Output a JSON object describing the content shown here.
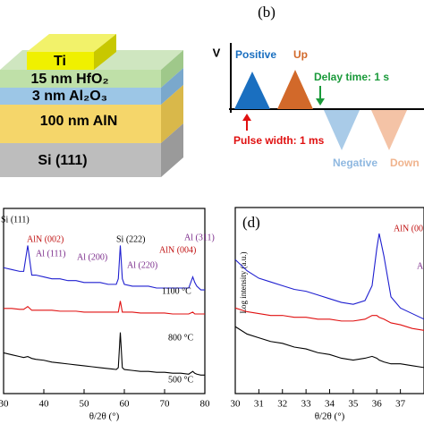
{
  "panel_a": {
    "layers": [
      "Ti",
      "15 nm HfO₂",
      "3 nm Al₂O₃",
      "100 nm AlN",
      "Si (111)"
    ]
  },
  "panel_b": {
    "label": "(b)",
    "axis_label": "V",
    "pulses": [
      "Positive",
      "Up",
      "Negative",
      "Down"
    ],
    "delay": "Delay time: 1 s",
    "width": "Pulse width: 1 ms"
  },
  "chart_data": [
    {
      "type": "line",
      "xlabel": "θ/2θ (°)",
      "xlim": [
        30,
        80
      ],
      "xticks": [
        30,
        40,
        50,
        60,
        70,
        80
      ],
      "ylim": [
        0,
        100
      ],
      "annotations": [
        "Si (111)",
        "AlN (002)",
        "Al (111)",
        "Al (200)",
        "Si (222)",
        "Al (220)",
        "AlN (004)",
        "Al (311)"
      ],
      "x": [
        30,
        32,
        34,
        35,
        36,
        36.5,
        37,
        38,
        40,
        42,
        44,
        46,
        48,
        50,
        52,
        54,
        56,
        58,
        58.5,
        59,
        59.5,
        60,
        62,
        64,
        66,
        68,
        70,
        72,
        74,
        76,
        77,
        77.5,
        78,
        79,
        80
      ],
      "series": [
        {
          "name": "1100 °C",
          "color": "#1f1fd0",
          "values": [
            68,
            67,
            66,
            66,
            80,
            72,
            64,
            64,
            63,
            62,
            62,
            61,
            61,
            60,
            60,
            60,
            59,
            59,
            62,
            80,
            62,
            59,
            58,
            58,
            58,
            57,
            57,
            57,
            57,
            57,
            63,
            60,
            58,
            56,
            56
          ]
        },
        {
          "name": "800 °C",
          "color": "#e01010",
          "values": [
            46,
            46,
            45.5,
            45.5,
            47,
            46,
            45,
            45,
            45,
            45,
            44.5,
            44.5,
            44.5,
            44,
            44,
            44,
            44,
            44,
            44,
            50,
            44,
            44,
            44,
            43.5,
            43.5,
            43.5,
            43.5,
            43,
            43,
            43,
            44,
            43,
            43,
            43,
            43
          ]
        },
        {
          "name": "500 °C",
          "color": "#000000",
          "values": [
            22,
            21,
            20,
            19.5,
            20,
            19.5,
            19,
            18.5,
            18,
            17,
            16.5,
            16,
            15.5,
            15,
            14.5,
            14,
            13.5,
            13,
            14,
            33,
            14,
            13,
            12.5,
            12,
            12,
            11.5,
            11.5,
            11,
            11,
            10.5,
            12,
            11,
            10.5,
            10,
            10
          ]
        }
      ]
    },
    {
      "type": "line",
      "panel_label": "(d)",
      "xlabel": "θ/2θ (°)",
      "ylabel": "Log intensity (a.u.)",
      "xlim": [
        30,
        38
      ],
      "xticks": [
        30,
        31,
        32,
        33,
        34,
        35,
        36,
        37
      ],
      "ylim": [
        0,
        100
      ],
      "annotations": [
        "AlN (00",
        "A"
      ],
      "x": [
        30,
        30.5,
        31,
        31.5,
        32,
        32.5,
        33,
        33.5,
        34,
        34.5,
        35,
        35.5,
        35.8,
        36,
        36.1,
        36.3,
        36.6,
        37,
        37.5,
        38
      ],
      "series": [
        {
          "color": "#1f1fd0",
          "values": [
            72,
            66,
            62,
            60,
            58,
            56,
            55,
            53,
            51,
            49,
            48,
            50,
            58,
            78,
            86,
            74,
            52,
            46,
            43,
            40
          ]
        },
        {
          "color": "#e01010",
          "values": [
            46,
            44,
            43,
            42,
            42,
            41,
            41,
            40,
            40,
            39,
            39,
            40,
            42,
            42,
            41,
            40,
            38,
            37,
            35,
            34
          ]
        },
        {
          "color": "#000000",
          "values": [
            36,
            32,
            30,
            28,
            27,
            25,
            24,
            22,
            21,
            19,
            18,
            19,
            20,
            19,
            18,
            17,
            16,
            16,
            15,
            14
          ]
        }
      ]
    }
  ]
}
